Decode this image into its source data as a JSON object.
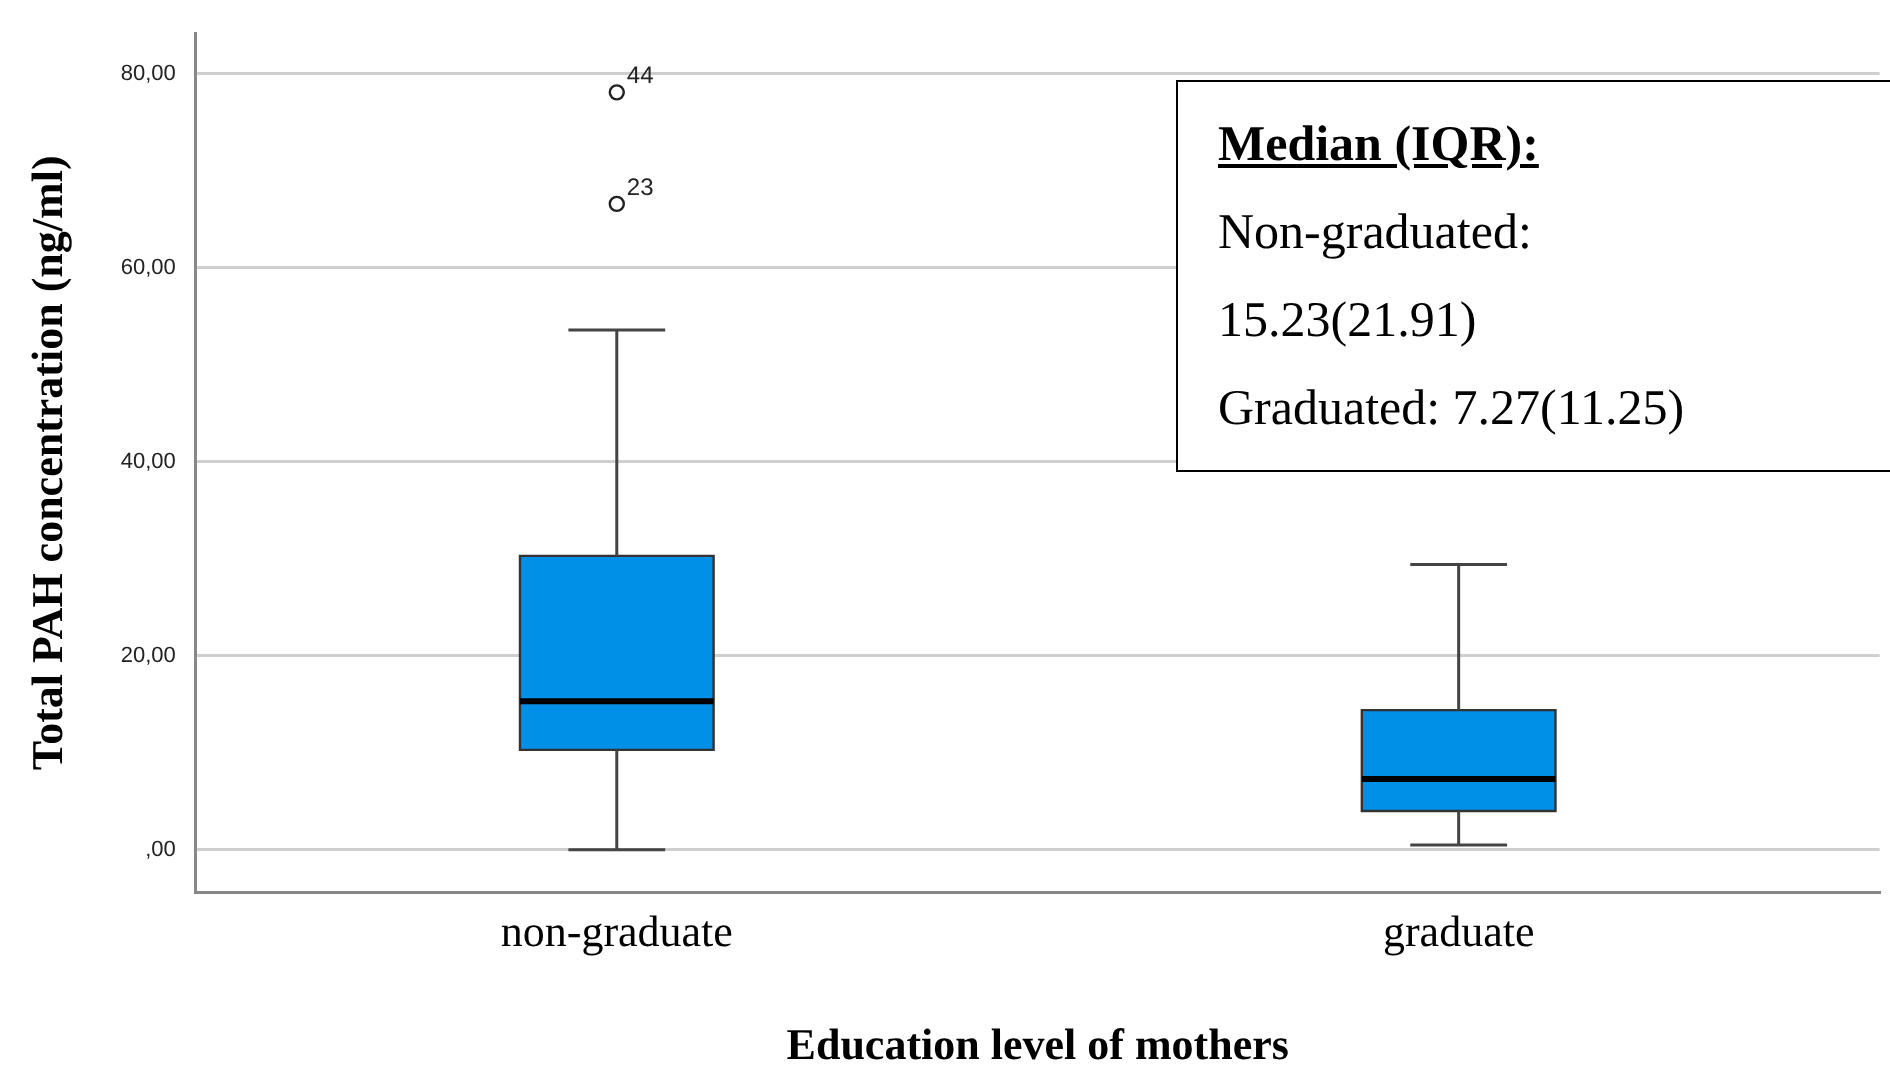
{
  "chart_data": {
    "type": "box",
    "xlabel": "Education level of mothers",
    "ylabel": "Total PAH concentration (ng/ml)",
    "categories": [
      "non-graduate",
      "graduate"
    ],
    "color": "#0090e8",
    "boxes": [
      {
        "low": 0,
        "q1": 10.3,
        "median": 15.3,
        "q3": 30.3,
        "high": 53.6,
        "outliers": [
          78.1,
          66.6
        ]
      },
      {
        "low": 0.5,
        "q1": 4.0,
        "median": 7.3,
        "q3": 14.4,
        "high": 29.4
      }
    ],
    "ylim": [
      -4.4,
      84.2
    ],
    "yticks": [
      {
        "value": 0,
        "label": ",00"
      },
      {
        "value": 20,
        "label": "20,00"
      },
      {
        "value": 40,
        "label": "40,00"
      },
      {
        "value": 60,
        "label": "60,00"
      },
      {
        "value": 80,
        "label": "80,00"
      }
    ],
    "grid": "y",
    "annotations": [
      "44",
      "23",
      "Median (IQR):",
      "Non-graduated: 15.23(21.91)",
      "Graduated: 7.27(11.25)"
    ]
  }
}
